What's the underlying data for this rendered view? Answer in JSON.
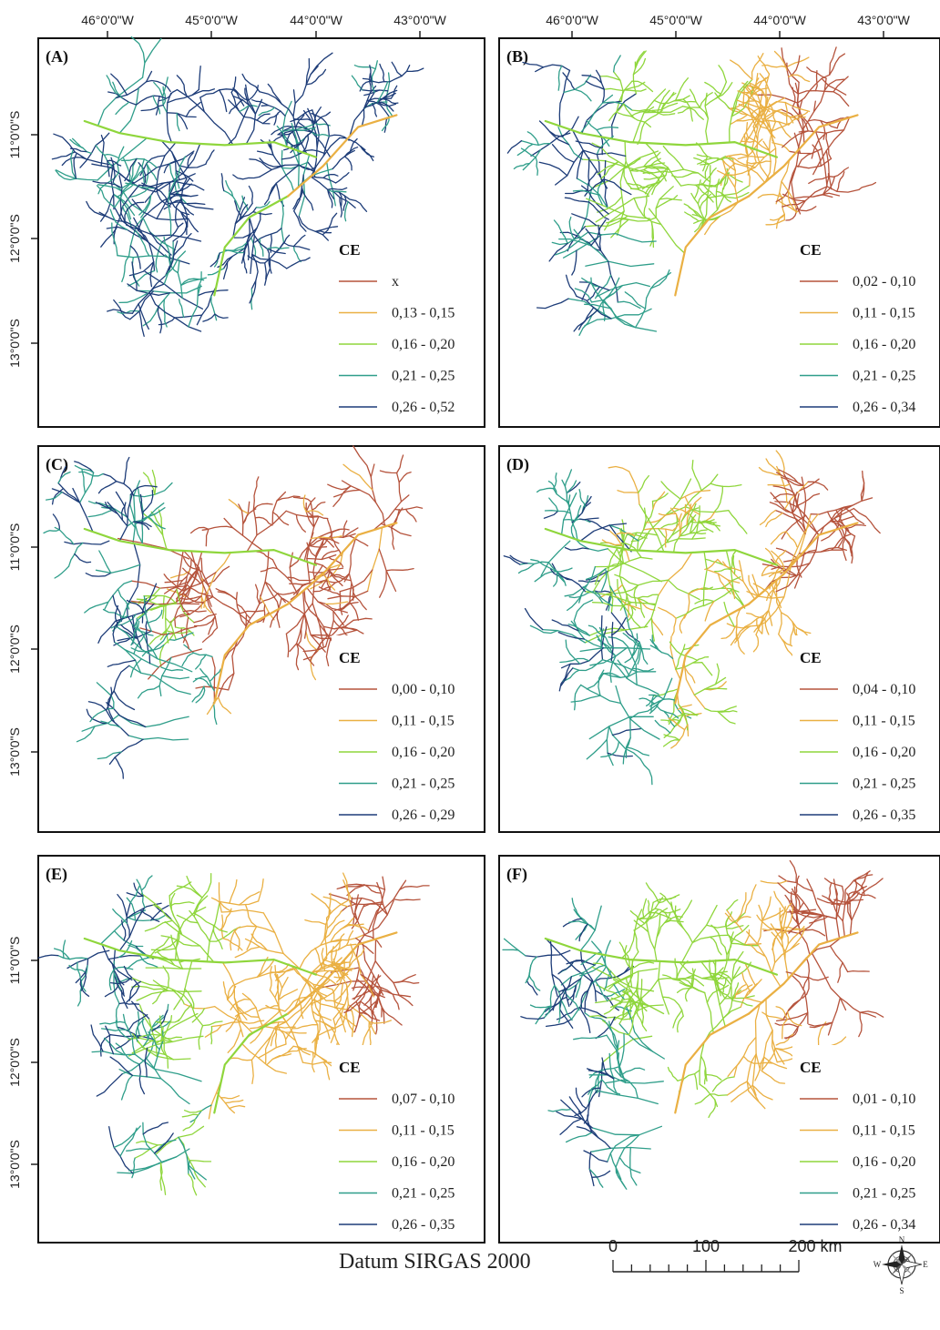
{
  "lon_labels": [
    "46°0'0\"W",
    "45°0'0\"W",
    "44°0'0\"W",
    "43°0'0\"W"
  ],
  "lat_labels": [
    "11°0'0\"S",
    "12°0'0\"S",
    "13°0'0\"S"
  ],
  "legend_title": "CE",
  "colors": {
    "red": "#b5533c",
    "orange": "#eab043",
    "green": "#8fd63c",
    "teal": "#2f9e8a",
    "navy": "#1d3c78"
  },
  "panels": [
    {
      "label": "(A)",
      "classes": [
        "x",
        "0,13 - 0,15",
        "0,16 - 0,20",
        "0,21 - 0,25",
        "0,26 - 0,52"
      ]
    },
    {
      "label": "(B)",
      "classes": [
        "0,02 - 0,10",
        "0,11 - 0,15",
        "0,16 - 0,20",
        "0,21 - 0,25",
        "0,26 - 0,34"
      ]
    },
    {
      "label": "(C)",
      "classes": [
        "0,00 - 0,10",
        "0,11 - 0,15",
        "0,16 - 0,20",
        "0,21 - 0,25",
        "0,26 - 0,29"
      ]
    },
    {
      "label": "(D)",
      "classes": [
        "0,04 - 0,10",
        "0,11 - 0,15",
        "0,16 - 0,20",
        "0,21 - 0,25",
        "0,26 - 0,35"
      ]
    },
    {
      "label": "(E)",
      "classes": [
        "0,07 - 0,10",
        "0,11 - 0,15",
        "0,16 - 0,20",
        "0,21 - 0,25",
        "0,26 - 0,35"
      ]
    },
    {
      "label": "(F)",
      "classes": [
        "0,01 - 0,10",
        "0,11 - 0,15",
        "0,16 - 0,20",
        "0,21 - 0,25",
        "0,26 - 0,34"
      ]
    }
  ],
  "datum": "Datum SIRGAS 2000",
  "scale_bar": {
    "labels": [
      "0",
      "100",
      "200 km"
    ]
  },
  "compass": {
    "n": "N",
    "s": "S",
    "e": "E",
    "w": "W"
  }
}
